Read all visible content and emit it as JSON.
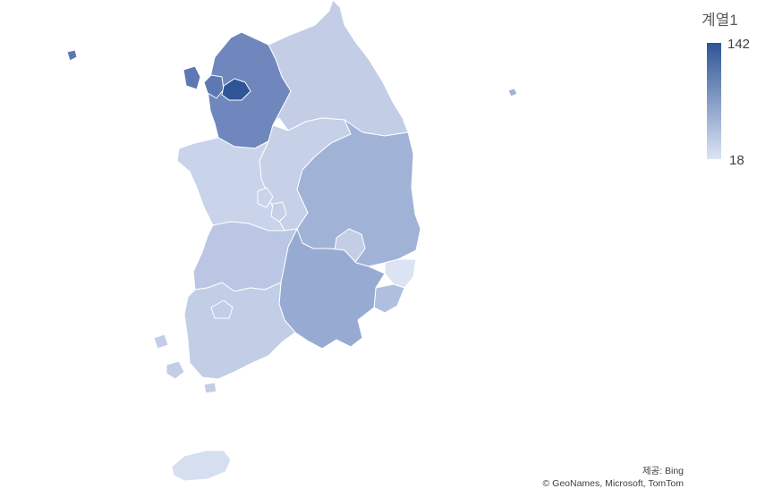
{
  "legend": {
    "title": "계열1",
    "max_label": "142",
    "min_label": "18",
    "color_max": "#2f5597",
    "color_min": "#dce4f3"
  },
  "attribution": {
    "provider": "제공: Bing",
    "copyright": "© GeoNames, Microsoft, TomTom"
  }
}
